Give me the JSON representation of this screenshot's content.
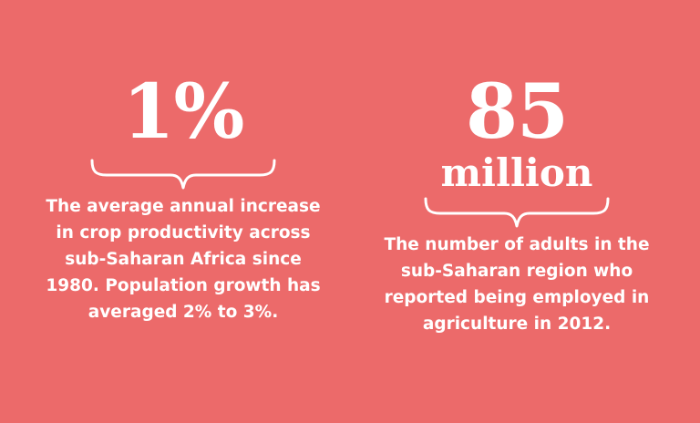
{
  "stats": [
    {
      "value": "1%",
      "unit": "",
      "description": "The average annual increase in crop productivity across sub-Saharan Africa since 1980. Population growth has averaged 2% to 3%."
    },
    {
      "value": "85",
      "unit": "million",
      "description": "The number of adults in the sub-Saharan region who reported being employed in agriculture in 2012."
    }
  ],
  "colors": {
    "background": "#ec6a6a",
    "text": "#ffffff"
  }
}
